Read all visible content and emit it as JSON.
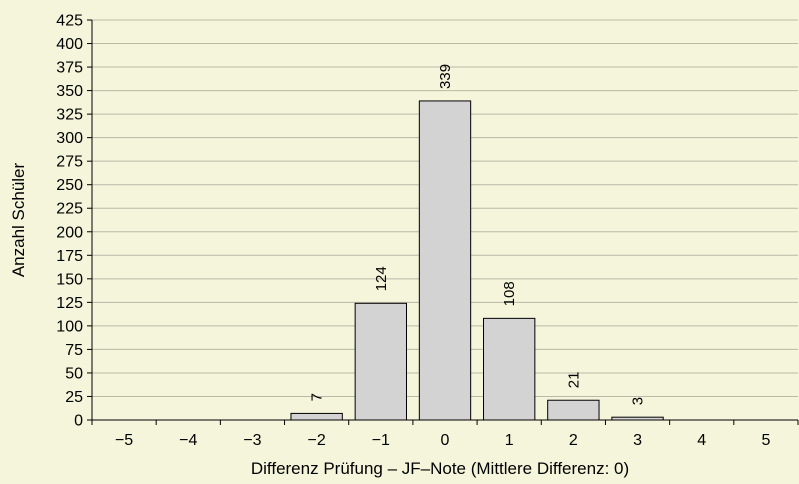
{
  "chart_data": {
    "type": "bar",
    "title": "",
    "xlabel": "Differenz Prüfung – JF–Note (Mittlere Differenz: 0)",
    "ylabel": "Anzahl Schüler",
    "categories": [
      "−5",
      "−4",
      "−3",
      "−2",
      "−1",
      "0",
      "1",
      "2",
      "3",
      "4",
      "5"
    ],
    "values": [
      0,
      0,
      0,
      7,
      124,
      339,
      108,
      21,
      3,
      0,
      0
    ],
    "data_labels": [
      "",
      "",
      "",
      "7",
      "124",
      "339",
      "108",
      "21",
      "3",
      "",
      ""
    ],
    "ylim": [
      0,
      425
    ],
    "y_ticks": [
      0,
      25,
      50,
      75,
      100,
      125,
      150,
      175,
      200,
      225,
      250,
      275,
      300,
      325,
      350,
      375,
      400,
      425
    ],
    "grid": true,
    "legend": "none",
    "colors": {
      "background": "#f5f5dc",
      "bar_fill": "#d3d3d3",
      "bar_stroke": "#000000",
      "grid": "#b9b9a8"
    }
  }
}
